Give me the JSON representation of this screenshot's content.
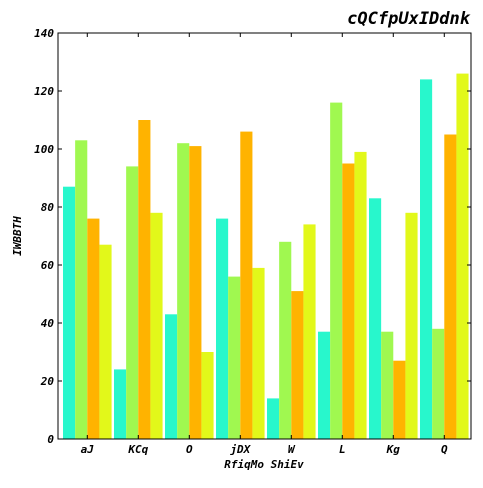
{
  "chart_data": {
    "type": "bar",
    "title": "cQCfpUxIDdnk",
    "xlabel": "RfiqMo ShiEv",
    "ylabel": "IWBBTH",
    "categories": [
      "aJ",
      "KCq",
      "O",
      "jDX",
      "W",
      "L",
      "Kg",
      "Q"
    ],
    "series": [
      {
        "color": "#28f7cc",
        "values": [
          87,
          24,
          43,
          76,
          14,
          37,
          83,
          124
        ]
      },
      {
        "color": "#a0f850",
        "values": [
          103,
          94,
          102,
          56,
          68,
          116,
          37,
          38
        ]
      },
      {
        "color": "#ffb300",
        "values": [
          76,
          110,
          101,
          106,
          51,
          95,
          27,
          105
        ]
      },
      {
        "color": "#e2f81a",
        "values": [
          67,
          78,
          30,
          59,
          74,
          99,
          78,
          126
        ]
      }
    ],
    "ylim": [
      0,
      140
    ],
    "yticks": [
      0,
      20,
      40,
      60,
      80,
      100,
      120,
      140
    ],
    "grid": false,
    "legend": "none"
  }
}
